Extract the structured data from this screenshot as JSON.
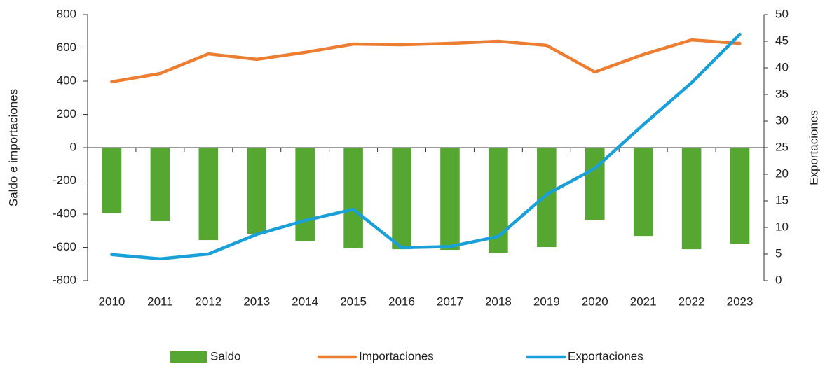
{
  "chart_data": {
    "type": "bar_line",
    "categories": [
      "2010",
      "2011",
      "2012",
      "2013",
      "2014",
      "2015",
      "2016",
      "2017",
      "2018",
      "2019",
      "2020",
      "2021",
      "2022",
      "2023"
    ],
    "ylabel": "Saldo e importaciones",
    "y2label": "Exportaciones",
    "ylim": [
      -800,
      800
    ],
    "yticks": [
      -800,
      -600,
      -400,
      -200,
      0,
      200,
      400,
      600,
      800
    ],
    "y2lim": [
      0,
      50
    ],
    "y2ticks": [
      0,
      5,
      10,
      15,
      20,
      25,
      30,
      35,
      40,
      45,
      50
    ],
    "legend": "bottom",
    "series": [
      {
        "name": "Saldo",
        "type": "bar",
        "color": "#56a632",
        "values": [
          -392,
          -442,
          -556,
          -518,
          -560,
          -606,
          -611,
          -615,
          -632,
          -598,
          -434,
          -531,
          -611,
          -577
        ]
      },
      {
        "name": "Importaciones",
        "type": "line",
        "color": "#ed7d31",
        "values": [
          396,
          446,
          564,
          531,
          573,
          623,
          619,
          627,
          640,
          615,
          455,
          560,
          648,
          627
        ]
      },
      {
        "name": "Exportaciones",
        "type": "line",
        "axis": "y2",
        "color": "#1aa0d8",
        "values": [
          4.9,
          4.1,
          5.0,
          8.7,
          11.3,
          13.4,
          6.2,
          6.4,
          8.3,
          16.2,
          21.1,
          29.3,
          37.2,
          46.3
        ]
      }
    ]
  }
}
